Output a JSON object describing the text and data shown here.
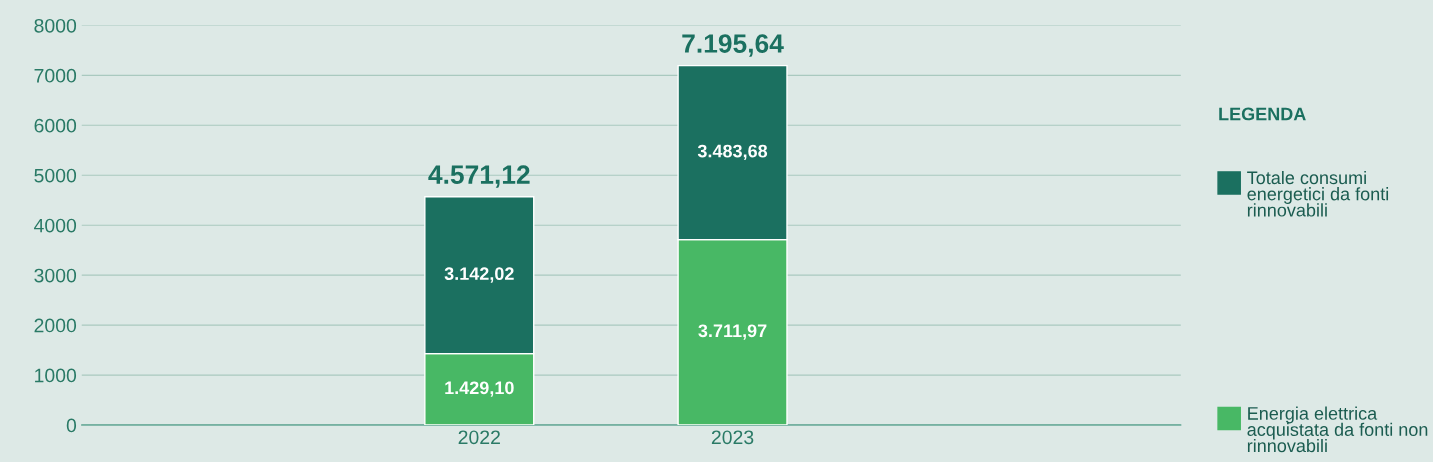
{
  "chart_data": {
    "type": "bar",
    "stacked": true,
    "categories": [
      "2022",
      "2023"
    ],
    "series": [
      {
        "name": "Energia elettrica acquistata da fonti non rinnovabili",
        "color": "#48b865",
        "values": [
          1429.1,
          3711.97
        ],
        "value_labels": [
          "1.429,10",
          "3.711,97"
        ]
      },
      {
        "name": "Totale consumi energetici da fonti rinnovabili",
        "color": "#1b7060",
        "values": [
          3142.02,
          3483.68
        ],
        "value_labels": [
          "3.142,02",
          "3.483,68"
        ]
      }
    ],
    "totals": [
      "4.571,12",
      "7.195,64"
    ],
    "ylim": [
      0,
      8000
    ],
    "yticks": [
      0,
      1000,
      2000,
      3000,
      4000,
      5000,
      6000,
      7000,
      8000
    ],
    "grid": "y",
    "legend": "right",
    "legend_title": "LEGENDA"
  }
}
